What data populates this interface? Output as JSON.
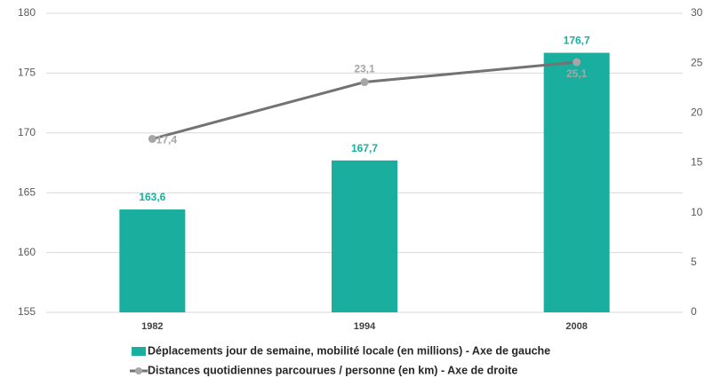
{
  "chart_data": {
    "type": "bar",
    "categories": [
      "1982",
      "1994",
      "2008"
    ],
    "series": [
      {
        "name": "Déplacements jour de semaine, mobilité locale (en millions) - Axe de gauche",
        "type": "bar",
        "color": "#1aae9f",
        "values": [
          163.6,
          167.7,
          176.7
        ],
        "value_labels": [
          "163,6",
          "167,7",
          "176,7"
        ]
      },
      {
        "name": "Distances quotidiennes parcourues / personne (en km) - Axe de droite",
        "type": "line",
        "axis": "y2",
        "color": "#737373",
        "marker_color": "#a6a6a6",
        "values": [
          17.4,
          23.1,
          25.1
        ],
        "value_labels": [
          "17,4",
          "23,1",
          "25,1"
        ]
      }
    ],
    "ylim": [
      155,
      180
    ],
    "yticks": [
      155,
      160,
      165,
      170,
      175,
      180
    ],
    "y2lim": [
      0,
      30
    ],
    "y2ticks": [
      0,
      5,
      10,
      15,
      20,
      25,
      30
    ],
    "grid": true
  }
}
